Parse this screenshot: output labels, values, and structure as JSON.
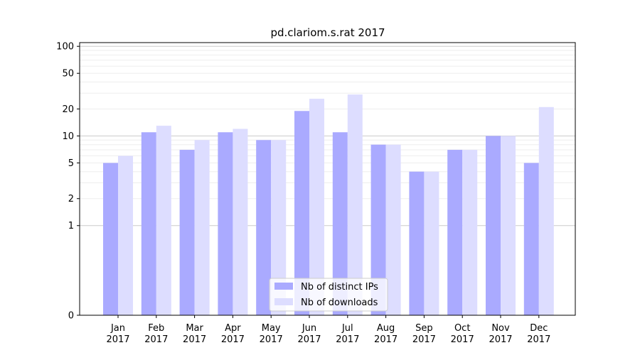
{
  "chart_data": {
    "type": "bar",
    "title": "pd.clariom.s.rat 2017",
    "xlabel": "",
    "ylabel": "",
    "y_scale": "symlog",
    "ylim": [
      0,
      110
    ],
    "y_ticks": [
      0,
      1,
      2,
      5,
      10,
      20,
      50,
      100
    ],
    "y_tick_labels": [
      "0",
      "1",
      "2",
      "5",
      "10",
      "20",
      "50",
      "100"
    ],
    "categories": [
      "Jan",
      "Feb",
      "Mar",
      "Apr",
      "May",
      "Jun",
      "Jul",
      "Aug",
      "Sep",
      "Oct",
      "Nov",
      "Dec"
    ],
    "category_sublabel": "2017",
    "series": [
      {
        "name": "Nb of distinct IPs",
        "color": "#aaaaff",
        "values": [
          5,
          11,
          7,
          11,
          9,
          19,
          11,
          8,
          4,
          7,
          10,
          5
        ]
      },
      {
        "name": "Nb of downloads",
        "color": "#ddddff",
        "values": [
          6,
          13,
          9,
          12,
          9,
          26,
          29,
          8,
          4,
          7,
          10,
          21
        ]
      }
    ],
    "grid": true,
    "legend_position": "bottom-center"
  }
}
